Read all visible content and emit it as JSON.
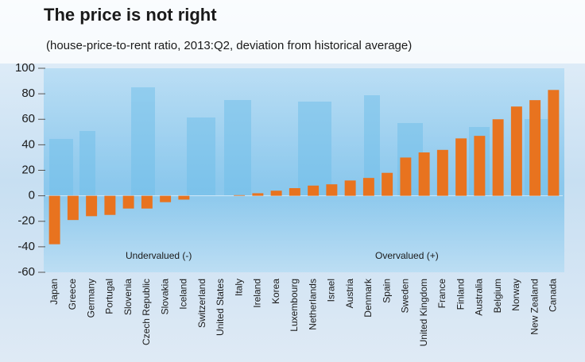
{
  "chart_data": {
    "type": "bar",
    "title": "The price is not right",
    "subtitle": "(house-price-to-rent ratio, 2013:Q2, deviation from historical average)",
    "annotations": [
      "Undervalued (-)",
      "Overvalued (+)"
    ],
    "categories": [
      "Japan",
      "Greece",
      "Germany",
      "Portugal",
      "Slovenia",
      "Czech Republic",
      "Slovakia",
      "Iceland",
      "Switzerland",
      "United States",
      "Italy",
      "Ireland",
      "Korea",
      "Luxembourg",
      "Netherlands",
      "Israel",
      "Austria",
      "Denmark",
      "Spain",
      "Sweden",
      "United Kingdom",
      "France",
      "Finland",
      "Australia",
      "Belgium",
      "Norway",
      "New Zealand",
      "Canada"
    ],
    "values": [
      -38,
      -19,
      -16,
      -15,
      -10,
      -10,
      -5,
      -3,
      0,
      0,
      0.5,
      2,
      4,
      6,
      8,
      9,
      12,
      14,
      18,
      30,
      34,
      36,
      45,
      47,
      60,
      70,
      75,
      83
    ],
    "color": "#e8731f",
    "ylim": [
      -60,
      100
    ],
    "yticks": [
      -60,
      -40,
      -20,
      0,
      20,
      40,
      60,
      80,
      100
    ],
    "grid": false
  }
}
